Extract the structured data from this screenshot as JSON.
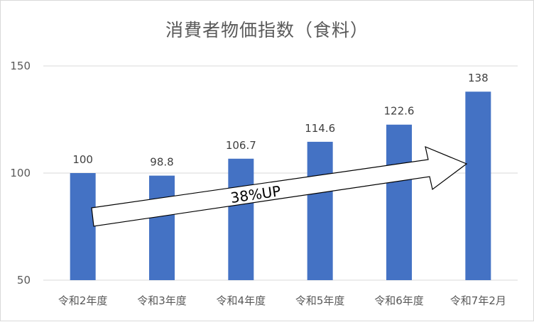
{
  "chart_data": {
    "type": "bar",
    "title": "消費者物価指数（食料）",
    "categories": [
      "令和2年度",
      "令和3年度",
      "令和4年度",
      "令和5年度",
      "令和6年度",
      "令和7年2月"
    ],
    "values": [
      100,
      98.8,
      106.7,
      114.6,
      122.6,
      138
    ],
    "value_labels": [
      "100",
      "98.8",
      "106.7",
      "114.6",
      "122.6",
      "138"
    ],
    "ylim": [
      50,
      150
    ],
    "yticks": [
      "50",
      "100",
      "150"
    ],
    "grid": true,
    "legend": "none",
    "bar_color": "#4472C4",
    "annotation": "38%UP"
  }
}
